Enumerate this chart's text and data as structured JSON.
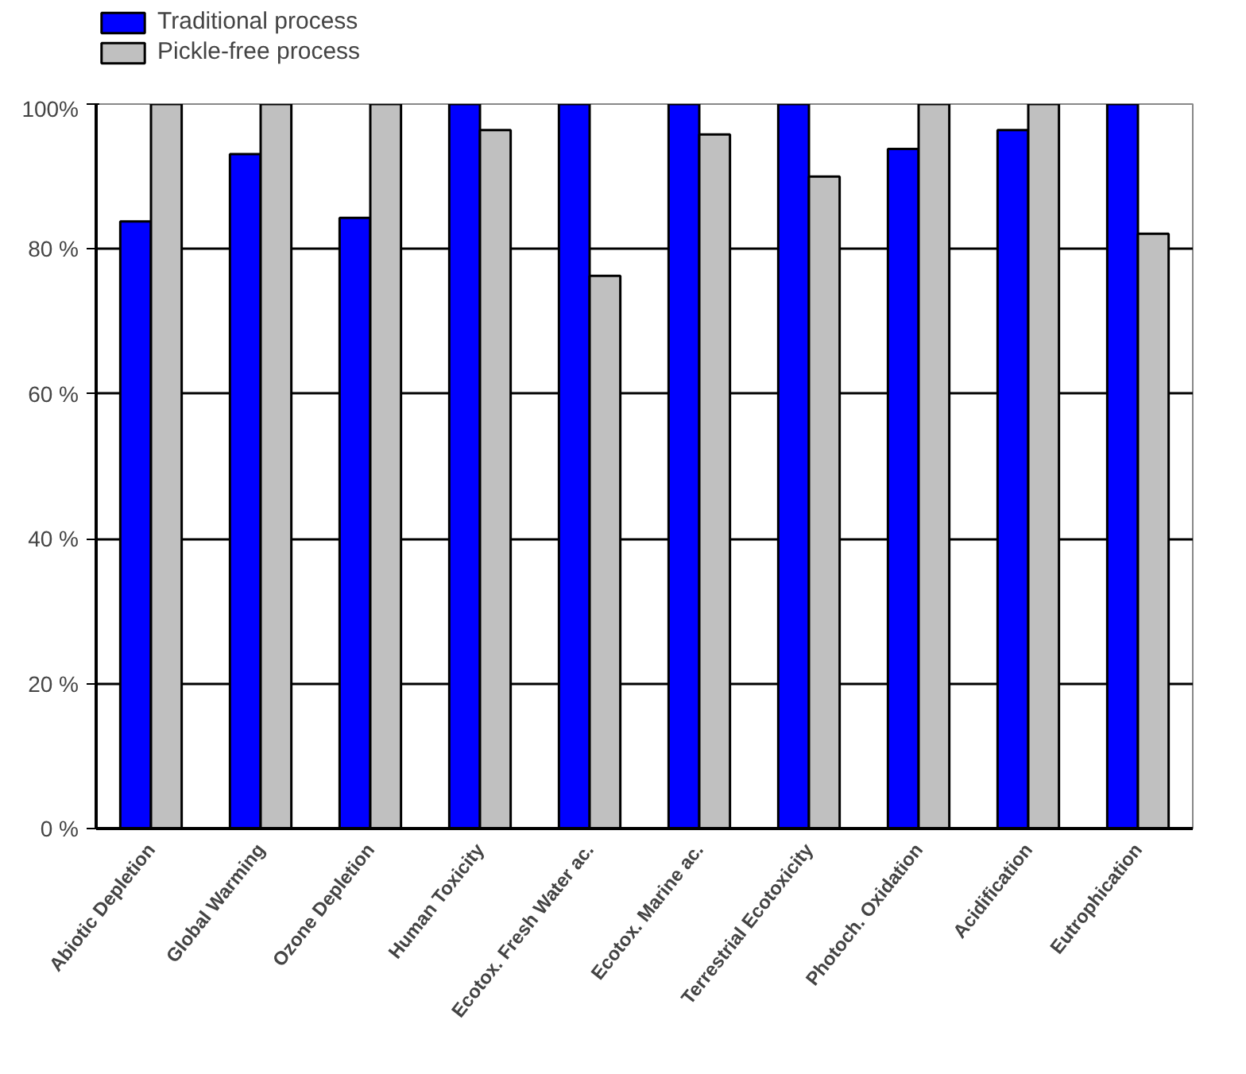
{
  "chart_data": {
    "type": "bar",
    "categories": [
      "Abiotic Depletion",
      "Global Warming",
      "Ozone Depletion",
      "Human Toxicity",
      "Ecotox. Fresh Water ac.",
      "Ecotox. Marine ac.",
      "Terrestrial Ecotoxicity",
      "Photoch. Oxidation",
      "Acidification",
      "Eutrophication"
    ],
    "series": [
      {
        "name": "Traditional process",
        "color": "#0000ff",
        "values": [
          83.8,
          93.1,
          84.3,
          100,
          100,
          100,
          100,
          93.8,
          96.4,
          100
        ]
      },
      {
        "name": "Pickle-free process",
        "color": "#c0c0c0",
        "values": [
          100,
          100,
          100,
          96.4,
          76.3,
          95.8,
          90.0,
          100,
          100,
          82.1
        ]
      }
    ],
    "ylim": [
      0,
      100
    ],
    "yticks": [
      {
        "value": 0,
        "label": "0 %"
      },
      {
        "value": 20,
        "label": "20 %"
      },
      {
        "value": 40,
        "label": "40 %"
      },
      {
        "value": 60,
        "label": "60 %"
      },
      {
        "value": 80,
        "label": "80 %"
      },
      {
        "value": 100,
        "label": "100%"
      }
    ],
    "grid": "y",
    "legend": "top left"
  }
}
